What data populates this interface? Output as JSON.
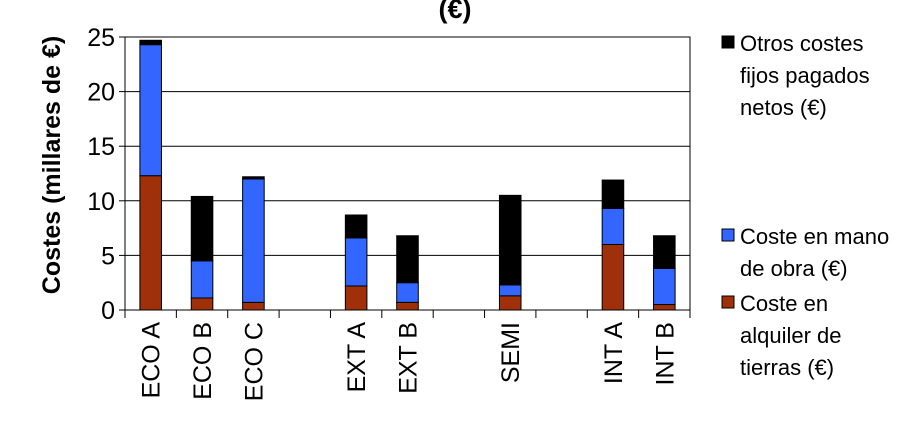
{
  "chart_data": {
    "type": "bar",
    "stacked": true,
    "title": "(€)",
    "ylabel": "Costes (millares de €)",
    "xlabel": "",
    "ylim": [
      0,
      25
    ],
    "yticks": [
      0,
      5,
      10,
      15,
      20,
      25
    ],
    "grid": true,
    "legend_position": "right",
    "categories": [
      "ECO A",
      "ECO B",
      "ECO C",
      "",
      "EXT A",
      "EXT B",
      "",
      "SEMI",
      "",
      "INT A",
      "INT B"
    ],
    "series": [
      {
        "name": "Coste en alquiler de tierras (€)",
        "color": "#a0300a",
        "values": [
          12.3,
          1.1,
          0.7,
          null,
          2.2,
          0.7,
          null,
          1.3,
          null,
          6.0,
          0.5
        ]
      },
      {
        "name": "Coste en mano de obra (€)",
        "color": "#3366ff",
        "values": [
          12.0,
          3.4,
          11.3,
          null,
          4.4,
          1.8,
          null,
          1.0,
          null,
          3.3,
          3.3
        ]
      },
      {
        "name": "Otros costes fijos pagados netos (€)",
        "color": "#000000",
        "values": [
          0.4,
          5.9,
          0.2,
          null,
          2.1,
          4.3,
          null,
          8.2,
          null,
          2.6,
          3.0
        ]
      }
    ],
    "legend_lines": [
      [
        "Otros costes",
        "fijos pagados",
        "netos (€)"
      ],
      [
        "Coste en mano",
        "de obra (€)"
      ],
      [
        "Coste en",
        "alquiler de",
        "tierras (€)"
      ]
    ]
  }
}
